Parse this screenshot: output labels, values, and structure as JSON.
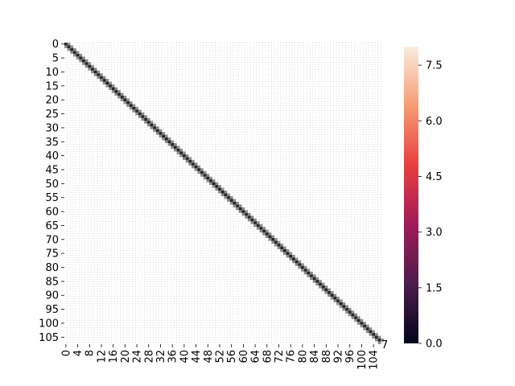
{
  "chart_data": {
    "type": "heatmap",
    "n_rows": 108,
    "n_cols": 108,
    "background_value": 0,
    "diagonal": {
      "description_of_visible_pattern": "near-zero values everywhere except faint marks along the main diagonal and immediate off-diagonals",
      "values": {
        "main": 0.4,
        "offset_plus1": 0.25,
        "offset_minus1": 0.25
      }
    },
    "highlight_cells": [
      {
        "row": 107,
        "col": 107,
        "value": 8
      }
    ],
    "y_ticks": [
      0,
      5,
      10,
      15,
      20,
      25,
      30,
      35,
      40,
      45,
      50,
      55,
      60,
      65,
      70,
      75,
      80,
      85,
      90,
      95,
      100,
      105
    ],
    "x_ticks": [
      0,
      4,
      8,
      12,
      16,
      20,
      24,
      28,
      32,
      36,
      40,
      44,
      48,
      52,
      56,
      60,
      64,
      68,
      72,
      76,
      80,
      84,
      88,
      92,
      96,
      100,
      104
    ],
    "x_tick_extra": "7",
    "colorbar": {
      "min": 0,
      "max": 8,
      "ticks": [
        "0.0",
        "1.5",
        "3.0",
        "4.5",
        "6.0",
        "7.5"
      ],
      "tick_values": [
        0,
        1.5,
        3.0,
        4.5,
        6.0,
        7.5
      ],
      "colormap": "rocket",
      "colors": [
        "#03051a",
        "#4c1d4b",
        "#a11a5b",
        "#e83f3f",
        "#f69c73",
        "#faebdd"
      ]
    },
    "grid": "dotted cell dividers",
    "title": "",
    "xlabel": "",
    "ylabel": ""
  }
}
